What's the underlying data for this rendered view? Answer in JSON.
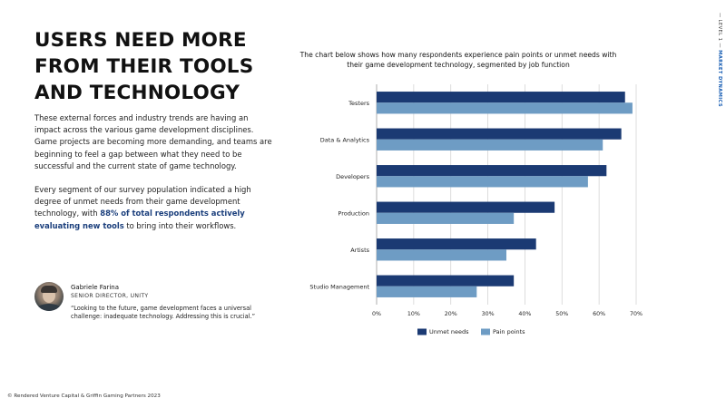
{
  "headline": {
    "line1": "USERS NEED MORE",
    "line2": "FROM THEIR TOOLS",
    "line3": "AND TECHNOLOGY"
  },
  "body": {
    "paragraph1": "These external forces and industry trends are having an impact across the various game development disciplines. Game projects are becoming more demanding, and teams are beginning to feel a gap between what they need to be successful and the current state of game technology.",
    "paragraph2_before": "Every segment of our survey population indicated a high degree of unmet needs from their game development technology, with ",
    "paragraph2_highlight": "88% of total respondents actively evaluating new tools",
    "paragraph2_after": " to bring into their workflows."
  },
  "quote": {
    "name": "Gabriele Farina",
    "role": "SENIOR DIRECTOR, UNITY",
    "text": "“Looking to the future, game development faces a universal challenge: inadequate technology. Addressing this is crucial.”"
  },
  "side_label": {
    "level": "— LEVEL 1 —",
    "section": "MARKET DYNAMICS"
  },
  "footer": {
    "copyright": "© Rendered Venture Capital & Griffin Gaming Partners 2023"
  },
  "chart_data": {
    "type": "bar",
    "orientation": "horizontal",
    "title": "The chart below shows how many respondents experience pain points or unmet needs with their game development technology, segmented by job function",
    "categories": [
      "Testers",
      "Data & Analytics",
      "Developers",
      "Production",
      "Artists",
      "Studio Management"
    ],
    "series": [
      {
        "name": "Unmet needs",
        "color": "#1b3a73",
        "values": [
          67,
          66,
          62,
          48,
          43,
          37
        ]
      },
      {
        "name": "Pain points",
        "color": "#6e9cc4",
        "values": [
          69,
          61,
          57,
          37,
          35,
          27
        ]
      }
    ],
    "x_ticks": [
      0,
      10,
      20,
      30,
      40,
      50,
      60,
      70
    ],
    "x_tick_labels": [
      "0%",
      "10%",
      "20%",
      "30%",
      "40%",
      "50%",
      "60%",
      "70%"
    ],
    "xlim": [
      0,
      70
    ],
    "grid": true,
    "legend": "bottom"
  }
}
